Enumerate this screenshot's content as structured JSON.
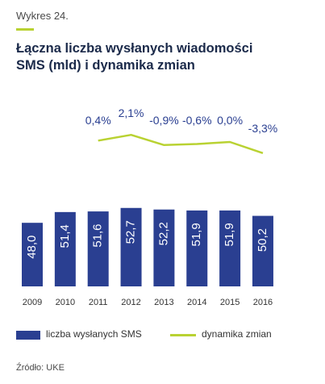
{
  "header": {
    "kicker": "Wykres 24.",
    "title_line1": "Łączna liczba wysłanych wiadomości",
    "title_line2": "SMS (mld) i dynamika zmian"
  },
  "legend": {
    "bars": "liczba wysłanych SMS",
    "line": "dynamika zmian"
  },
  "source": "Źródło: UKE",
  "colors": {
    "bar": "#2a3f91",
    "line": "#b9d232",
    "line_label": "#2a3f91",
    "bar_label": "#ffffff",
    "axis_text": "#333333"
  },
  "chart_data": {
    "type": "bar",
    "categories": [
      "2009",
      "2010",
      "2011",
      "2012",
      "2013",
      "2014",
      "2015",
      "2016"
    ],
    "series": [
      {
        "values": [
          48.0,
          51.4,
          51.6,
          52.7,
          52.2,
          51.9,
          51.9,
          50.2
        ],
        "labels": [
          "48,0",
          "51,4",
          "51,6",
          "52,7",
          "52,2",
          "51,9",
          "51,9",
          "50,2"
        ]
      },
      {
        "type": "line",
        "x": [
          "2011",
          "2012",
          "2013",
          "2014",
          "2015",
          "2016"
        ],
        "values": [
          0.4,
          2.1,
          -0.9,
          -0.6,
          0.0,
          -3.3
        ],
        "labels": [
          "0,4%",
          "2,1%",
          "-0,9%",
          "-0,6%",
          "0,0%",
          "-3,3%"
        ]
      }
    ],
    "legend_position": "bottom",
    "grid": false
  }
}
